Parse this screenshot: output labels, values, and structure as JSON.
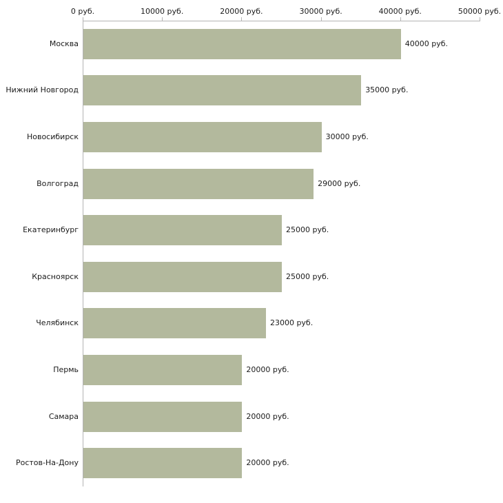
{
  "chart_data": {
    "type": "bar",
    "orientation": "horizontal",
    "title": "",
    "xlabel": "",
    "ylabel": "",
    "categories": [
      "Москва",
      "Нижний Новгород",
      "Новосибирск",
      "Волгоград",
      "Екатеринбург",
      "Красноярск",
      "Челябинск",
      "Пермь",
      "Самара",
      "Ростов-На-Дону"
    ],
    "values": [
      40000,
      35000,
      30000,
      29000,
      25000,
      25000,
      23000,
      20000,
      20000,
      20000
    ],
    "value_labels": [
      "40000 руб.",
      "35000 руб.",
      "30000 руб.",
      "29000 руб.",
      "25000 руб.",
      "25000 руб.",
      "23000 руб.",
      "20000 руб.",
      "20000 руб.",
      "20000 руб."
    ],
    "x_ticks": [
      0,
      10000,
      20000,
      30000,
      40000,
      50000
    ],
    "x_tick_labels": [
      "0 руб.",
      "10000 руб.",
      "20000 руб.",
      "30000 руб.",
      "40000 руб.",
      "50000 руб."
    ],
    "xlim": [
      0,
      50000
    ],
    "grid": false,
    "legend_position": "none",
    "bar_color": "#b3b99d",
    "axis_color": "#b3b3b3",
    "text_color": "#1a1a1a",
    "background_color": "#ffffff"
  }
}
